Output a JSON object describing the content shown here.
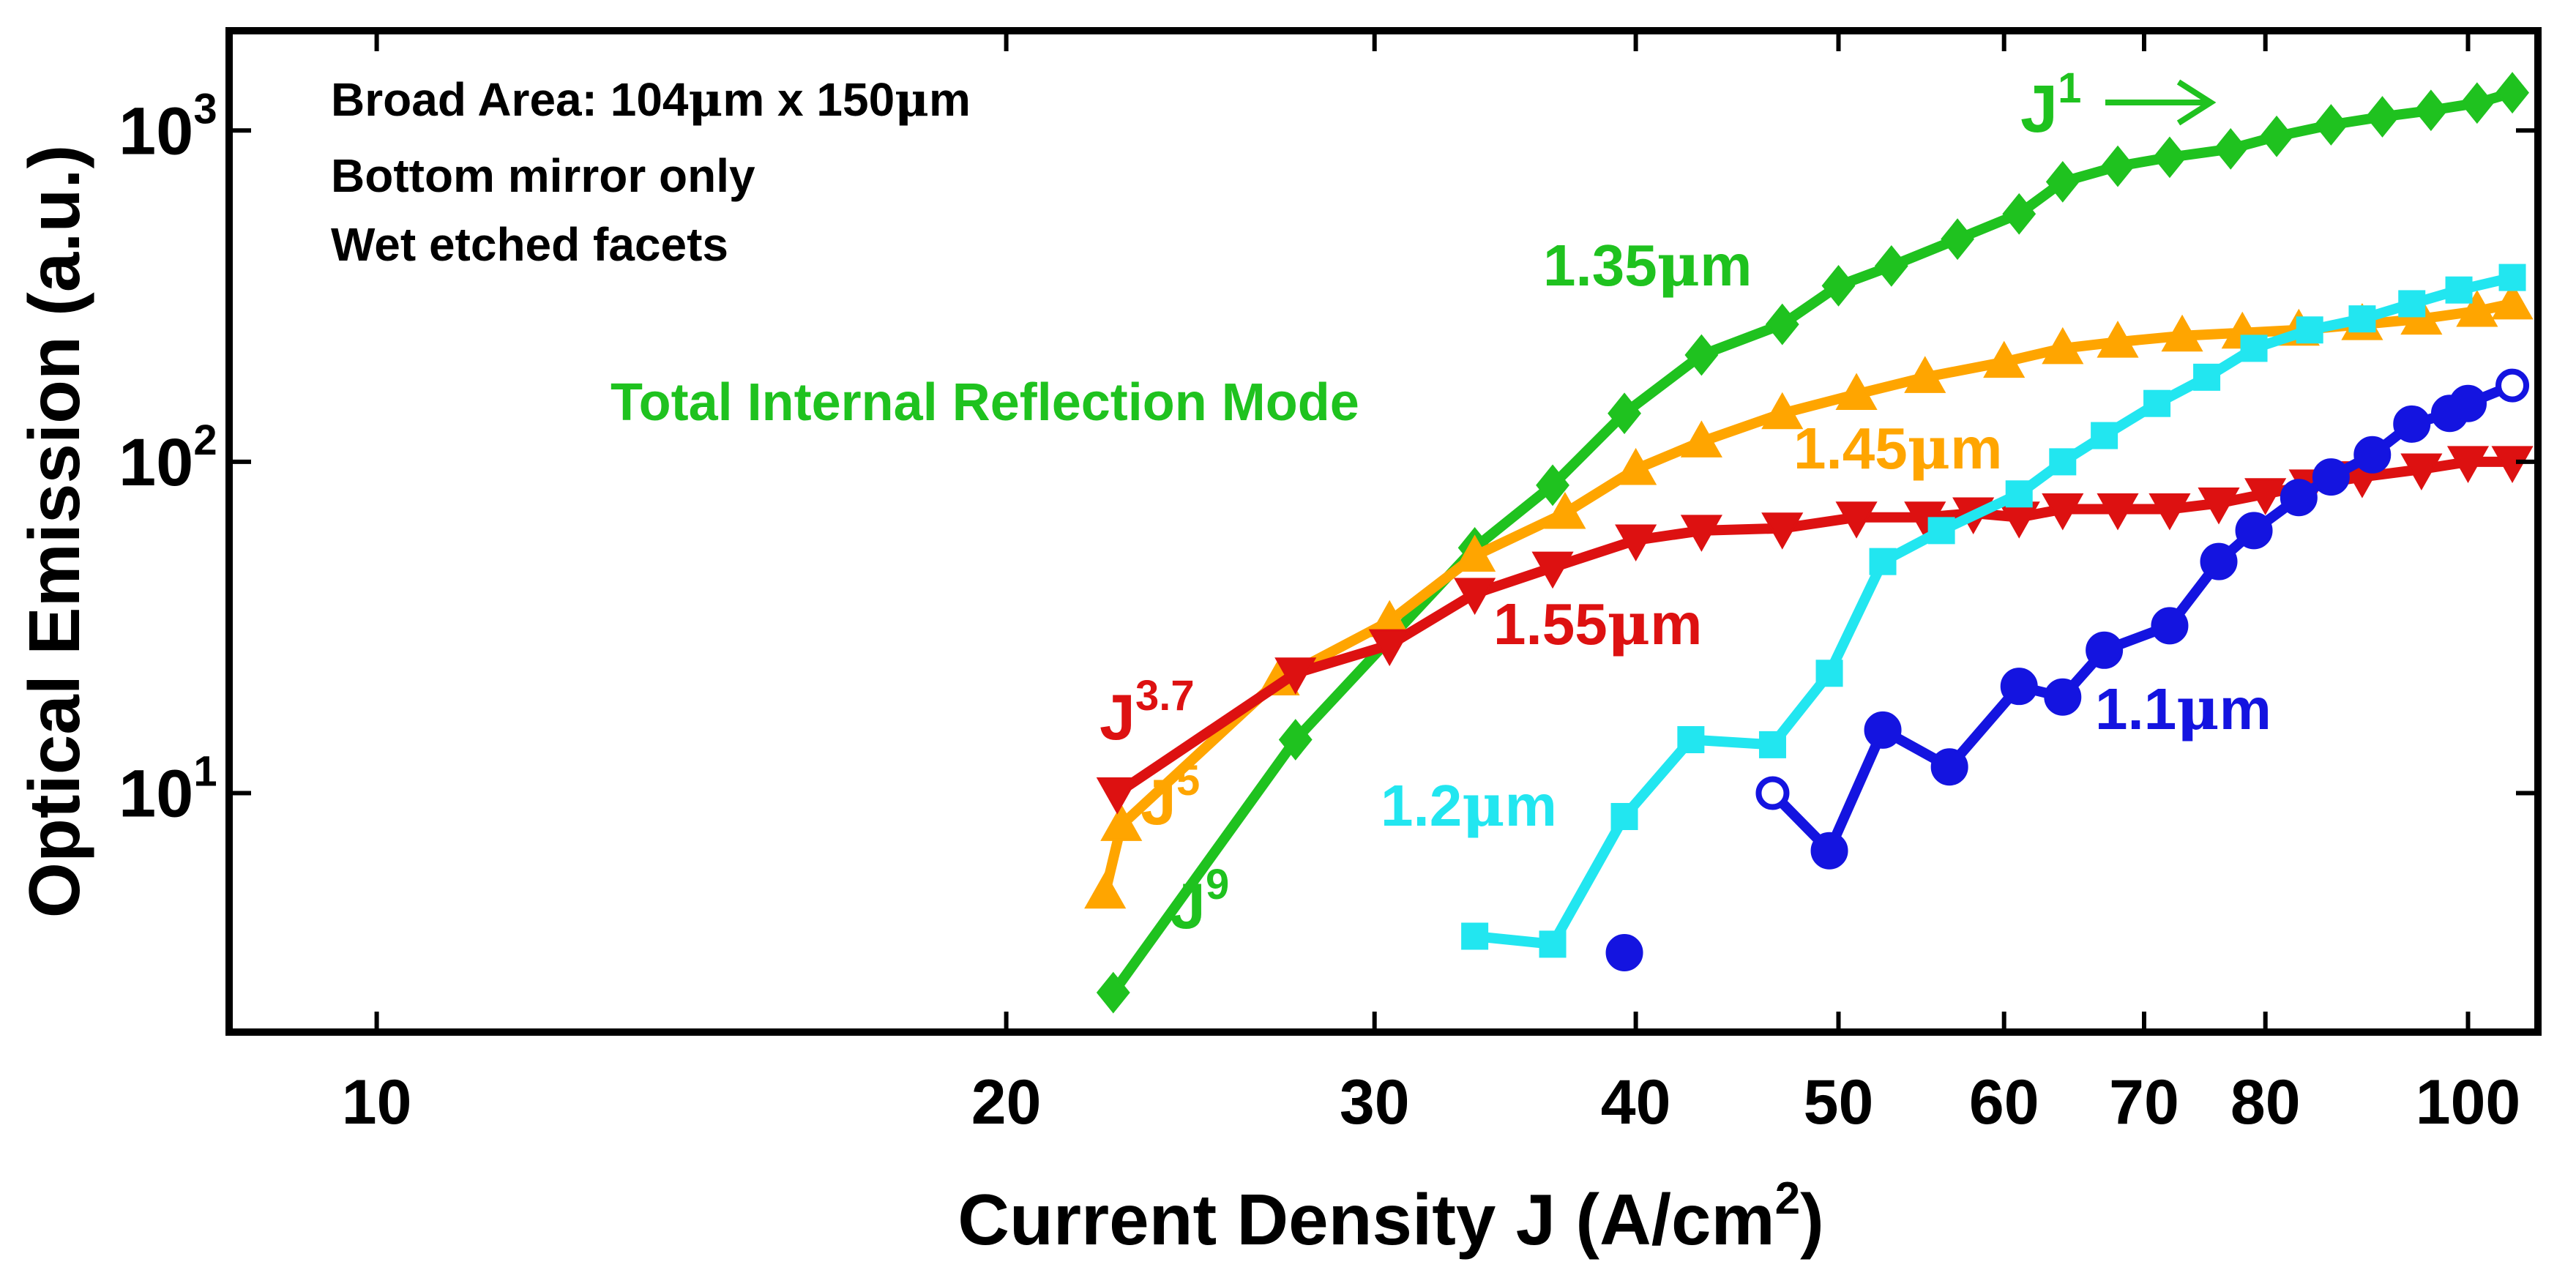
{
  "chart_data": {
    "type": "line",
    "xscale": "log",
    "yscale": "log",
    "xlim": [
      8.5,
      108
    ],
    "ylim": [
      1.9,
      2000
    ],
    "xlabel": "Current Density J (A/cm",
    "xlabel_sup": "2",
    "xlabel_end": ")",
    "ylabel": "Optical Emission (a.u.)",
    "x_ticks": [
      {
        "value": 10,
        "label": "10"
      },
      {
        "value": 20,
        "label": "20"
      },
      {
        "value": 30,
        "label": "30"
      },
      {
        "value": 40,
        "label": "40"
      },
      {
        "value": 50,
        "label": "50"
      },
      {
        "value": 60,
        "label": "60"
      },
      {
        "value": 70,
        "label": "70"
      },
      {
        "value": 80,
        "label": "80"
      },
      {
        "value": 100,
        "label": "100"
      }
    ],
    "y_ticks": [
      {
        "value": 10,
        "base": "10",
        "exp": "1"
      },
      {
        "value": 100,
        "base": "10",
        "exp": "2"
      },
      {
        "value": 1000,
        "base": "10",
        "exp": "3"
      }
    ],
    "info_lines": [
      {
        "pre": "Broad Area: 104",
        "mu1": "μ",
        "mid": "m x 150",
        "mu2": "μ",
        "post": "m"
      },
      {
        "pre": "Bottom mirror only"
      },
      {
        "pre": "Wet etched facets"
      }
    ],
    "mode_label": "Total Internal Reflection Mode",
    "series": [
      {
        "name": "1.35µm",
        "label_num": "1.35",
        "label_mu": "μ",
        "label_unit": "m",
        "color": "#1fc21f",
        "marker": "diamond",
        "x": [
          22.5,
          27.5,
          33.5,
          36.5,
          39.5,
          43,
          47,
          50,
          53,
          57,
          61,
          64,
          68,
          72,
          77,
          81,
          86,
          91,
          96,
          101,
          105
        ],
        "y": [
          2.5,
          14.5,
          55,
          85,
          140,
          210,
          260,
          340,
          390,
          470,
          560,
          700,
          780,
          830,
          880,
          960,
          1040,
          1100,
          1150,
          1210,
          1300
        ]
      },
      {
        "name": "1.45µm",
        "label_num": "1.45",
        "label_mu": "μ",
        "label_unit": "m",
        "color": "#ffa500",
        "marker": "triangle-up",
        "x": [
          22.3,
          22.7,
          27,
          30.5,
          33.5,
          37,
          40,
          43,
          47,
          51,
          55,
          60,
          64,
          68,
          73,
          78,
          83,
          89,
          95,
          101,
          105
        ],
        "y": [
          5,
          8,
          22,
          33,
          52,
          70,
          95,
          115,
          140,
          160,
          180,
          200,
          220,
          230,
          240,
          245,
          250,
          260,
          270,
          285,
          300
        ]
      },
      {
        "name": "1.55µm",
        "label_num": "1.55",
        "label_mu": "μ",
        "label_unit": "m",
        "color": "#dd1111",
        "marker": "triangle-down",
        "x": [
          22.6,
          27.5,
          30.5,
          33.5,
          36.5,
          40,
          43,
          47,
          51,
          55,
          58,
          61,
          64,
          68,
          72,
          76,
          80,
          84,
          89,
          95,
          100,
          105
        ],
        "y": [
          10,
          23,
          28,
          40,
          48,
          58,
          62,
          63,
          68,
          68,
          70,
          68,
          72,
          72,
          72,
          75,
          80,
          85,
          90,
          95,
          100,
          100
        ]
      },
      {
        "name": "1.2µm",
        "label_num": "1.2",
        "label_mu": "μ",
        "label_unit": "m",
        "color": "#22e6f0",
        "marker": "square",
        "x": [
          33.5,
          36.5,
          39.5,
          42.5,
          46.5,
          49.5,
          52.5,
          56,
          61,
          64,
          67,
          71,
          75,
          79,
          84,
          89,
          94,
          99,
          105
        ],
        "y": [
          3.7,
          3.5,
          8.5,
          14.5,
          14,
          23,
          50,
          62,
          80,
          100,
          120,
          150,
          180,
          220,
          250,
          270,
          300,
          330,
          360
        ]
      },
      {
        "name": "1.1µm",
        "label_num": "1.1",
        "label_mu": "μ",
        "label_unit": "m",
        "color": "#1414e0",
        "marker": "circle",
        "x": [
          39.5,
          46.5,
          49.5,
          52.5,
          56.5,
          61,
          64,
          67,
          72,
          76,
          79,
          83,
          86,
          90,
          94,
          98,
          100,
          105
        ],
        "y": [
          3.3,
          10,
          6.7,
          15.5,
          12,
          21,
          19.5,
          27,
          32,
          50,
          62,
          78,
          90,
          105,
          130,
          140,
          150,
          170
        ],
        "hollow_index": [
          1,
          17
        ],
        "broken_after": [
          0
        ]
      }
    ],
    "annotations": {
      "j1": {
        "base": "J",
        "exp": "1",
        "color": "#1fc21f"
      },
      "j37": {
        "base": "J",
        "exp": "3.7",
        "color": "#dd1111"
      },
      "j5": {
        "base": "J",
        "exp": "5",
        "color": "#ffa500"
      },
      "j9": {
        "base": "J",
        "exp": "9",
        "color": "#1fc21f"
      }
    }
  }
}
